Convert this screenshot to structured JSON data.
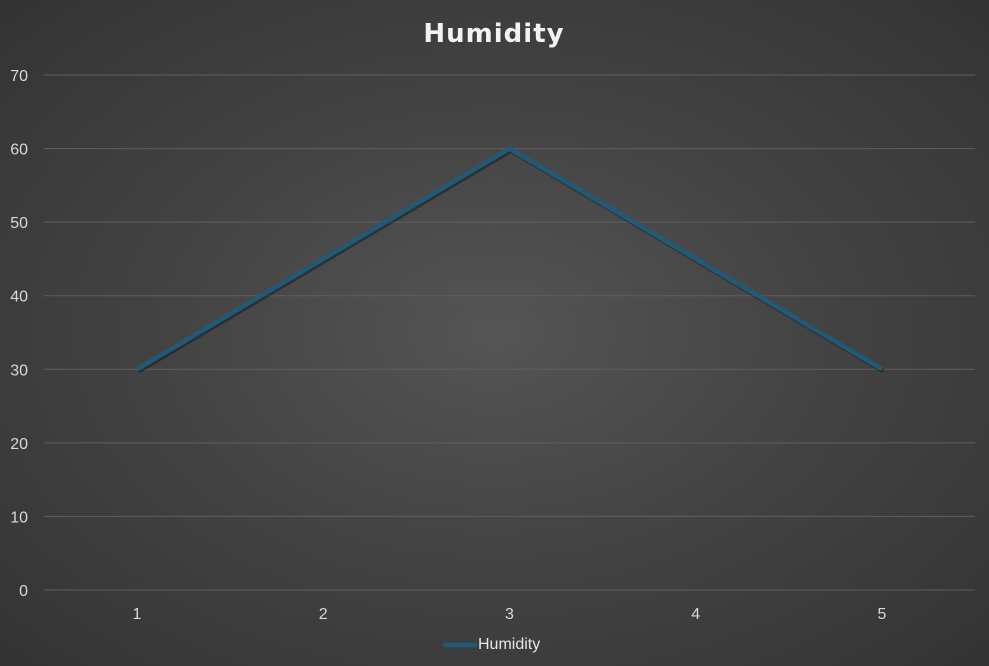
{
  "chart_data": {
    "type": "line",
    "title": "Humidity",
    "xlabel": "",
    "ylabel": "",
    "categories": [
      "1",
      "2",
      "3",
      "4",
      "5"
    ],
    "series": [
      {
        "name": "Humidity",
        "values": [
          30,
          45,
          60,
          45,
          30
        ],
        "color": "#1f5b78"
      }
    ],
    "ylim": [
      0,
      70
    ],
    "yticks": [
      0,
      10,
      20,
      30,
      40,
      50,
      60,
      70
    ],
    "grid": true,
    "legend_position": "bottom"
  }
}
